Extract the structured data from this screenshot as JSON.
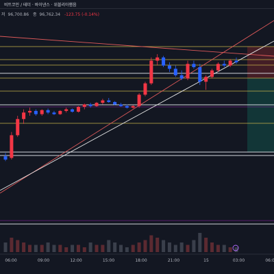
{
  "header": {
    "title": "비트코인 / 테더 · 바이낸스 · 위블리아햄음",
    "ohlc": {
      "close_label": "저",
      "close_value": "96,700.86",
      "last_label": "종",
      "last_value": "96,762.34",
      "change": "-123.75 (-0.14%)"
    }
  },
  "colors": {
    "background": "#131722",
    "up": "#f23645",
    "down": "#2962ff",
    "yellow_level": "#c7b34a",
    "white_level": "#d1d4dc",
    "trendline": "#e05a5a",
    "short_zone_top": "#4a1f27",
    "short_zone_bottom": "#133a3a"
  },
  "time_axis": {
    "labels": [
      "06:00",
      "09:00",
      "12:00",
      "15:00",
      "18:00",
      "21:00",
      "15",
      "03:00",
      "06:00"
    ]
  },
  "chart_data": {
    "type": "candlestick",
    "x": "time (one candle per interval)",
    "candles": [
      [
        0,
        97.0,
        97.2,
        96.7,
        96.8
      ],
      [
        1,
        96.9,
        98.5,
        96.8,
        98.3
      ],
      [
        2,
        98.3,
        99.5,
        98.2,
        99.3
      ],
      [
        3,
        99.3,
        99.9,
        99.0,
        99.7
      ],
      [
        4,
        99.7,
        100.0,
        99.5,
        99.8
      ],
      [
        5,
        99.8,
        99.9,
        99.5,
        99.6
      ],
      [
        6,
        99.6,
        99.9,
        99.5,
        99.85
      ],
      [
        7,
        99.85,
        99.95,
        99.6,
        99.7
      ],
      [
        8,
        99.7,
        99.8,
        99.55,
        99.6
      ],
      [
        9,
        99.6,
        99.85,
        99.55,
        99.8
      ],
      [
        10,
        99.8,
        100.0,
        99.7,
        99.9
      ],
      [
        11,
        99.9,
        99.95,
        99.7,
        99.75
      ],
      [
        12,
        99.75,
        100.1,
        99.7,
        100.05
      ],
      [
        13,
        100.05,
        100.25,
        99.9,
        100.2
      ],
      [
        14,
        100.2,
        100.3,
        100.0,
        100.1
      ],
      [
        15,
        100.1,
        100.35,
        100.05,
        100.3
      ],
      [
        16,
        100.3,
        100.55,
        100.2,
        100.45
      ],
      [
        17,
        100.45,
        100.6,
        100.3,
        100.35
      ],
      [
        18,
        100.35,
        100.4,
        100.15,
        100.2
      ],
      [
        19,
        100.2,
        100.3,
        100.05,
        100.1
      ],
      [
        20,
        100.1,
        100.2,
        99.95,
        100.0
      ],
      [
        21,
        100.0,
        100.15,
        99.95,
        100.1
      ],
      [
        22,
        100.1,
        100.9,
        100.0,
        100.8
      ],
      [
        23,
        100.8,
        101.6,
        100.7,
        101.5
      ],
      [
        24,
        101.5,
        103.1,
        101.4,
        102.9
      ],
      [
        25,
        102.9,
        103.3,
        102.6,
        103.1
      ],
      [
        26,
        103.1,
        103.2,
        102.5,
        102.6
      ],
      [
        27,
        102.6,
        102.8,
        102.2,
        102.4
      ],
      [
        28,
        102.4,
        102.6,
        101.9,
        102.0
      ],
      [
        29,
        102.0,
        102.3,
        101.7,
        101.8
      ],
      [
        30,
        101.8,
        102.9,
        101.7,
        102.7
      ],
      [
        31,
        102.7,
        102.9,
        102.4,
        102.5
      ],
      [
        32,
        102.5,
        102.7,
        101.4,
        101.6
      ],
      [
        33,
        101.6,
        102.0,
        101.1,
        101.9
      ],
      [
        34,
        101.9,
        102.4,
        101.8,
        102.3
      ],
      [
        35,
        102.3,
        102.8,
        102.2,
        102.7
      ],
      [
        36,
        102.7,
        102.9,
        102.5,
        102.6
      ],
      [
        37,
        102.6,
        103.0,
        102.5,
        102.9
      ],
      [
        38,
        102.9,
        103.1,
        102.7,
        102.8
      ]
    ],
    "volume": [
      4,
      6,
      5,
      4,
      3,
      3,
      3,
      4,
      3,
      3,
      2,
      3,
      3,
      2,
      4,
      3,
      3,
      5,
      4,
      3,
      2,
      3,
      4,
      5,
      7,
      6,
      5,
      4,
      3,
      4,
      3,
      5,
      8,
      6,
      4,
      3,
      3,
      2,
      2
    ]
  }
}
